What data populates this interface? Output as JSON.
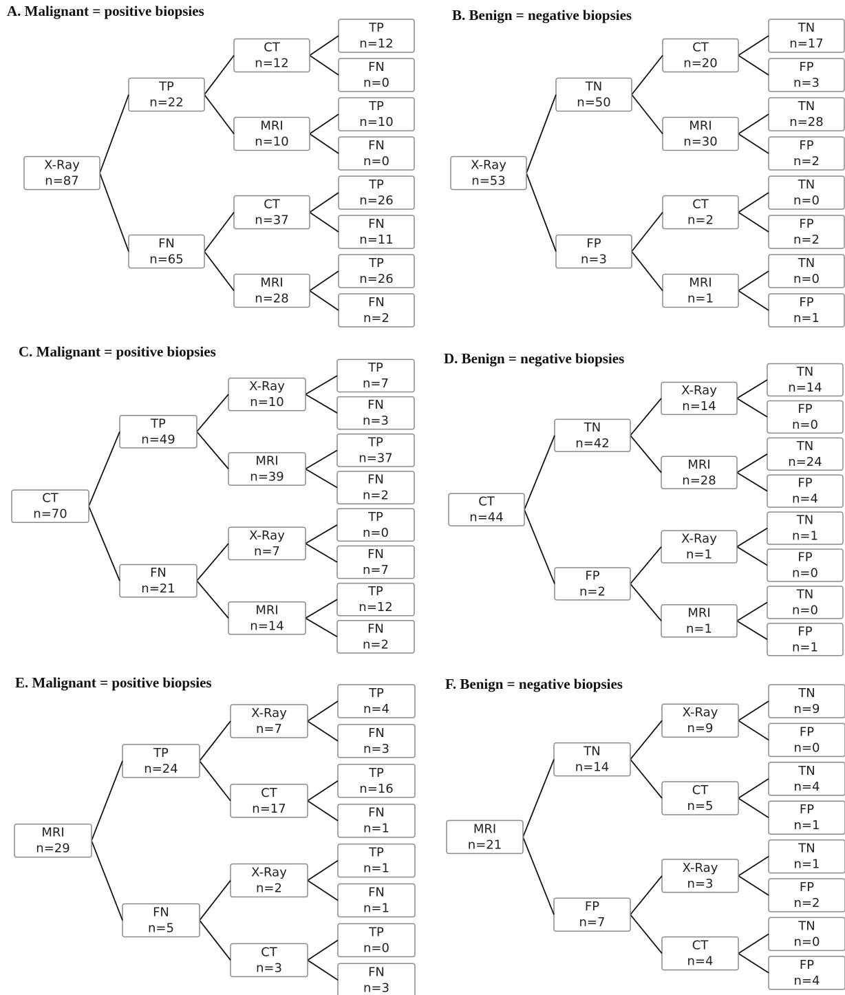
{
  "panels": [
    {
      "title": "A. Malignant = positive biopsies",
      "tree": {
        "label": "X-Ray",
        "n": "n=87",
        "children": [
          {
            "label": "TP",
            "n": "n=22",
            "children": [
              {
                "label": "CT",
                "n": "n=12",
                "children": [
                  {
                    "label": "TP",
                    "n": "n=12"
                  },
                  {
                    "label": "FN",
                    "n": "n=0"
                  }
                ]
              },
              {
                "label": "MRI",
                "n": "n=10",
                "children": [
                  {
                    "label": "TP",
                    "n": "n=10"
                  },
                  {
                    "label": "FN",
                    "n": "n=0"
                  }
                ]
              }
            ]
          },
          {
            "label": "FN",
            "n": "n=65",
            "children": [
              {
                "label": "CT",
                "n": "n=37",
                "children": [
                  {
                    "label": "TP",
                    "n": "n=26"
                  },
                  {
                    "label": "FN",
                    "n": "n=11"
                  }
                ]
              },
              {
                "label": "MRI",
                "n": "n=28",
                "children": [
                  {
                    "label": "TP",
                    "n": "n=26"
                  },
                  {
                    "label": "FN",
                    "n": "n=2"
                  }
                ]
              }
            ]
          }
        ]
      }
    },
    {
      "title": "B. Benign = negative biopsies",
      "tree": {
        "label": "X-Ray",
        "n": "n=53",
        "children": [
          {
            "label": "TN",
            "n": "n=50",
            "children": [
              {
                "label": "CT",
                "n": "n=20",
                "children": [
                  {
                    "label": "TN",
                    "n": "n=17"
                  },
                  {
                    "label": "FP",
                    "n": "n=3"
                  }
                ]
              },
              {
                "label": "MRI",
                "n": "n=30",
                "children": [
                  {
                    "label": "TN",
                    "n": "n=28"
                  },
                  {
                    "label": "FP",
                    "n": "n=2"
                  }
                ]
              }
            ]
          },
          {
            "label": "FP",
            "n": "n=3",
            "children": [
              {
                "label": "CT",
                "n": "n=2",
                "children": [
                  {
                    "label": "TN",
                    "n": "n=0"
                  },
                  {
                    "label": "FP",
                    "n": "n=2"
                  }
                ]
              },
              {
                "label": "MRI",
                "n": "n=1",
                "children": [
                  {
                    "label": "TN",
                    "n": "n=0"
                  },
                  {
                    "label": "FP",
                    "n": "n=1"
                  }
                ]
              }
            ]
          }
        ]
      }
    },
    {
      "title": "C. Malignant = positive biopsies",
      "tree": {
        "label": "CT",
        "n": "n=70",
        "children": [
          {
            "label": "TP",
            "n": "n=49",
            "children": [
              {
                "label": "X-Ray",
                "n": "n=10",
                "children": [
                  {
                    "label": "TP",
                    "n": "n=7"
                  },
                  {
                    "label": "FN",
                    "n": "n=3"
                  }
                ]
              },
              {
                "label": "MRI",
                "n": "n=39",
                "children": [
                  {
                    "label": "TP",
                    "n": "n=37"
                  },
                  {
                    "label": "FN",
                    "n": "n=2"
                  }
                ]
              }
            ]
          },
          {
            "label": "FN",
            "n": "n=21",
            "children": [
              {
                "label": "X-Ray",
                "n": "n=7",
                "children": [
                  {
                    "label": "TP",
                    "n": "n=0"
                  },
                  {
                    "label": "FN",
                    "n": "n=7"
                  }
                ]
              },
              {
                "label": "MRI",
                "n": "n=14",
                "children": [
                  {
                    "label": "TP",
                    "n": "n=12"
                  },
                  {
                    "label": "FN",
                    "n": "n=2"
                  }
                ]
              }
            ]
          }
        ]
      }
    },
    {
      "title": "D. Benign = negative biopsies",
      "tree": {
        "label": "CT",
        "n": "n=44",
        "children": [
          {
            "label": "TN",
            "n": "n=42",
            "children": [
              {
                "label": "X-Ray",
                "n": "n=14",
                "children": [
                  {
                    "label": "TN",
                    "n": "n=14"
                  },
                  {
                    "label": "FP",
                    "n": "n=0"
                  }
                ]
              },
              {
                "label": "MRI",
                "n": "n=28",
                "children": [
                  {
                    "label": "TN",
                    "n": "n=24"
                  },
                  {
                    "label": "FP",
                    "n": "n=4"
                  }
                ]
              }
            ]
          },
          {
            "label": "FP",
            "n": "n=2",
            "children": [
              {
                "label": "X-Ray",
                "n": "n=1",
                "children": [
                  {
                    "label": "TN",
                    "n": "n=1"
                  },
                  {
                    "label": "FP",
                    "n": "n=0"
                  }
                ]
              },
              {
                "label": "MRI",
                "n": "n=1",
                "children": [
                  {
                    "label": "TN",
                    "n": "n=0"
                  },
                  {
                    "label": "FP",
                    "n": "n=1"
                  }
                ]
              }
            ]
          }
        ]
      }
    },
    {
      "title": "E. Malignant = positive biopsies",
      "tree": {
        "label": "MRI",
        "n": "n=29",
        "children": [
          {
            "label": "TP",
            "n": "n=24",
            "children": [
              {
                "label": "X-Ray",
                "n": "n=7",
                "children": [
                  {
                    "label": "TP",
                    "n": "n=4"
                  },
                  {
                    "label": "FN",
                    "n": "n=3"
                  }
                ]
              },
              {
                "label": "CT",
                "n": "n=17",
                "children": [
                  {
                    "label": "TP",
                    "n": "n=16"
                  },
                  {
                    "label": "FN",
                    "n": "n=1"
                  }
                ]
              }
            ]
          },
          {
            "label": "FN",
            "n": "n=5",
            "children": [
              {
                "label": "X-Ray",
                "n": "n=2",
                "children": [
                  {
                    "label": "TP",
                    "n": "n=1"
                  },
                  {
                    "label": "FN",
                    "n": "n=1"
                  }
                ]
              },
              {
                "label": "CT",
                "n": "n=3",
                "children": [
                  {
                    "label": "TP",
                    "n": "n=0"
                  },
                  {
                    "label": "FN",
                    "n": "n=3"
                  }
                ]
              }
            ]
          }
        ]
      }
    },
    {
      "title": "F. Benign = negative biopsies",
      "tree": {
        "label": "MRI",
        "n": "n=21",
        "children": [
          {
            "label": "TN",
            "n": "n=14",
            "children": [
              {
                "label": "X-Ray",
                "n": "n=9",
                "children": [
                  {
                    "label": "TN",
                    "n": "n=9"
                  },
                  {
                    "label": "FP",
                    "n": "n=0"
                  }
                ]
              },
              {
                "label": "CT",
                "n": "n=5",
                "children": [
                  {
                    "label": "TN",
                    "n": "n=4"
                  },
                  {
                    "label": "FP",
                    "n": "n=1"
                  }
                ]
              }
            ]
          },
          {
            "label": "FP",
            "n": "n=7",
            "children": [
              {
                "label": "X-Ray",
                "n": "n=3",
                "children": [
                  {
                    "label": "TN",
                    "n": "n=1"
                  },
                  {
                    "label": "FP",
                    "n": "n=2"
                  }
                ]
              },
              {
                "label": "CT",
                "n": "n=4",
                "children": [
                  {
                    "label": "TN",
                    "n": "n=0"
                  },
                  {
                    "label": "FP",
                    "n": "n=4"
                  }
                ]
              }
            ]
          }
        ]
      }
    }
  ]
}
